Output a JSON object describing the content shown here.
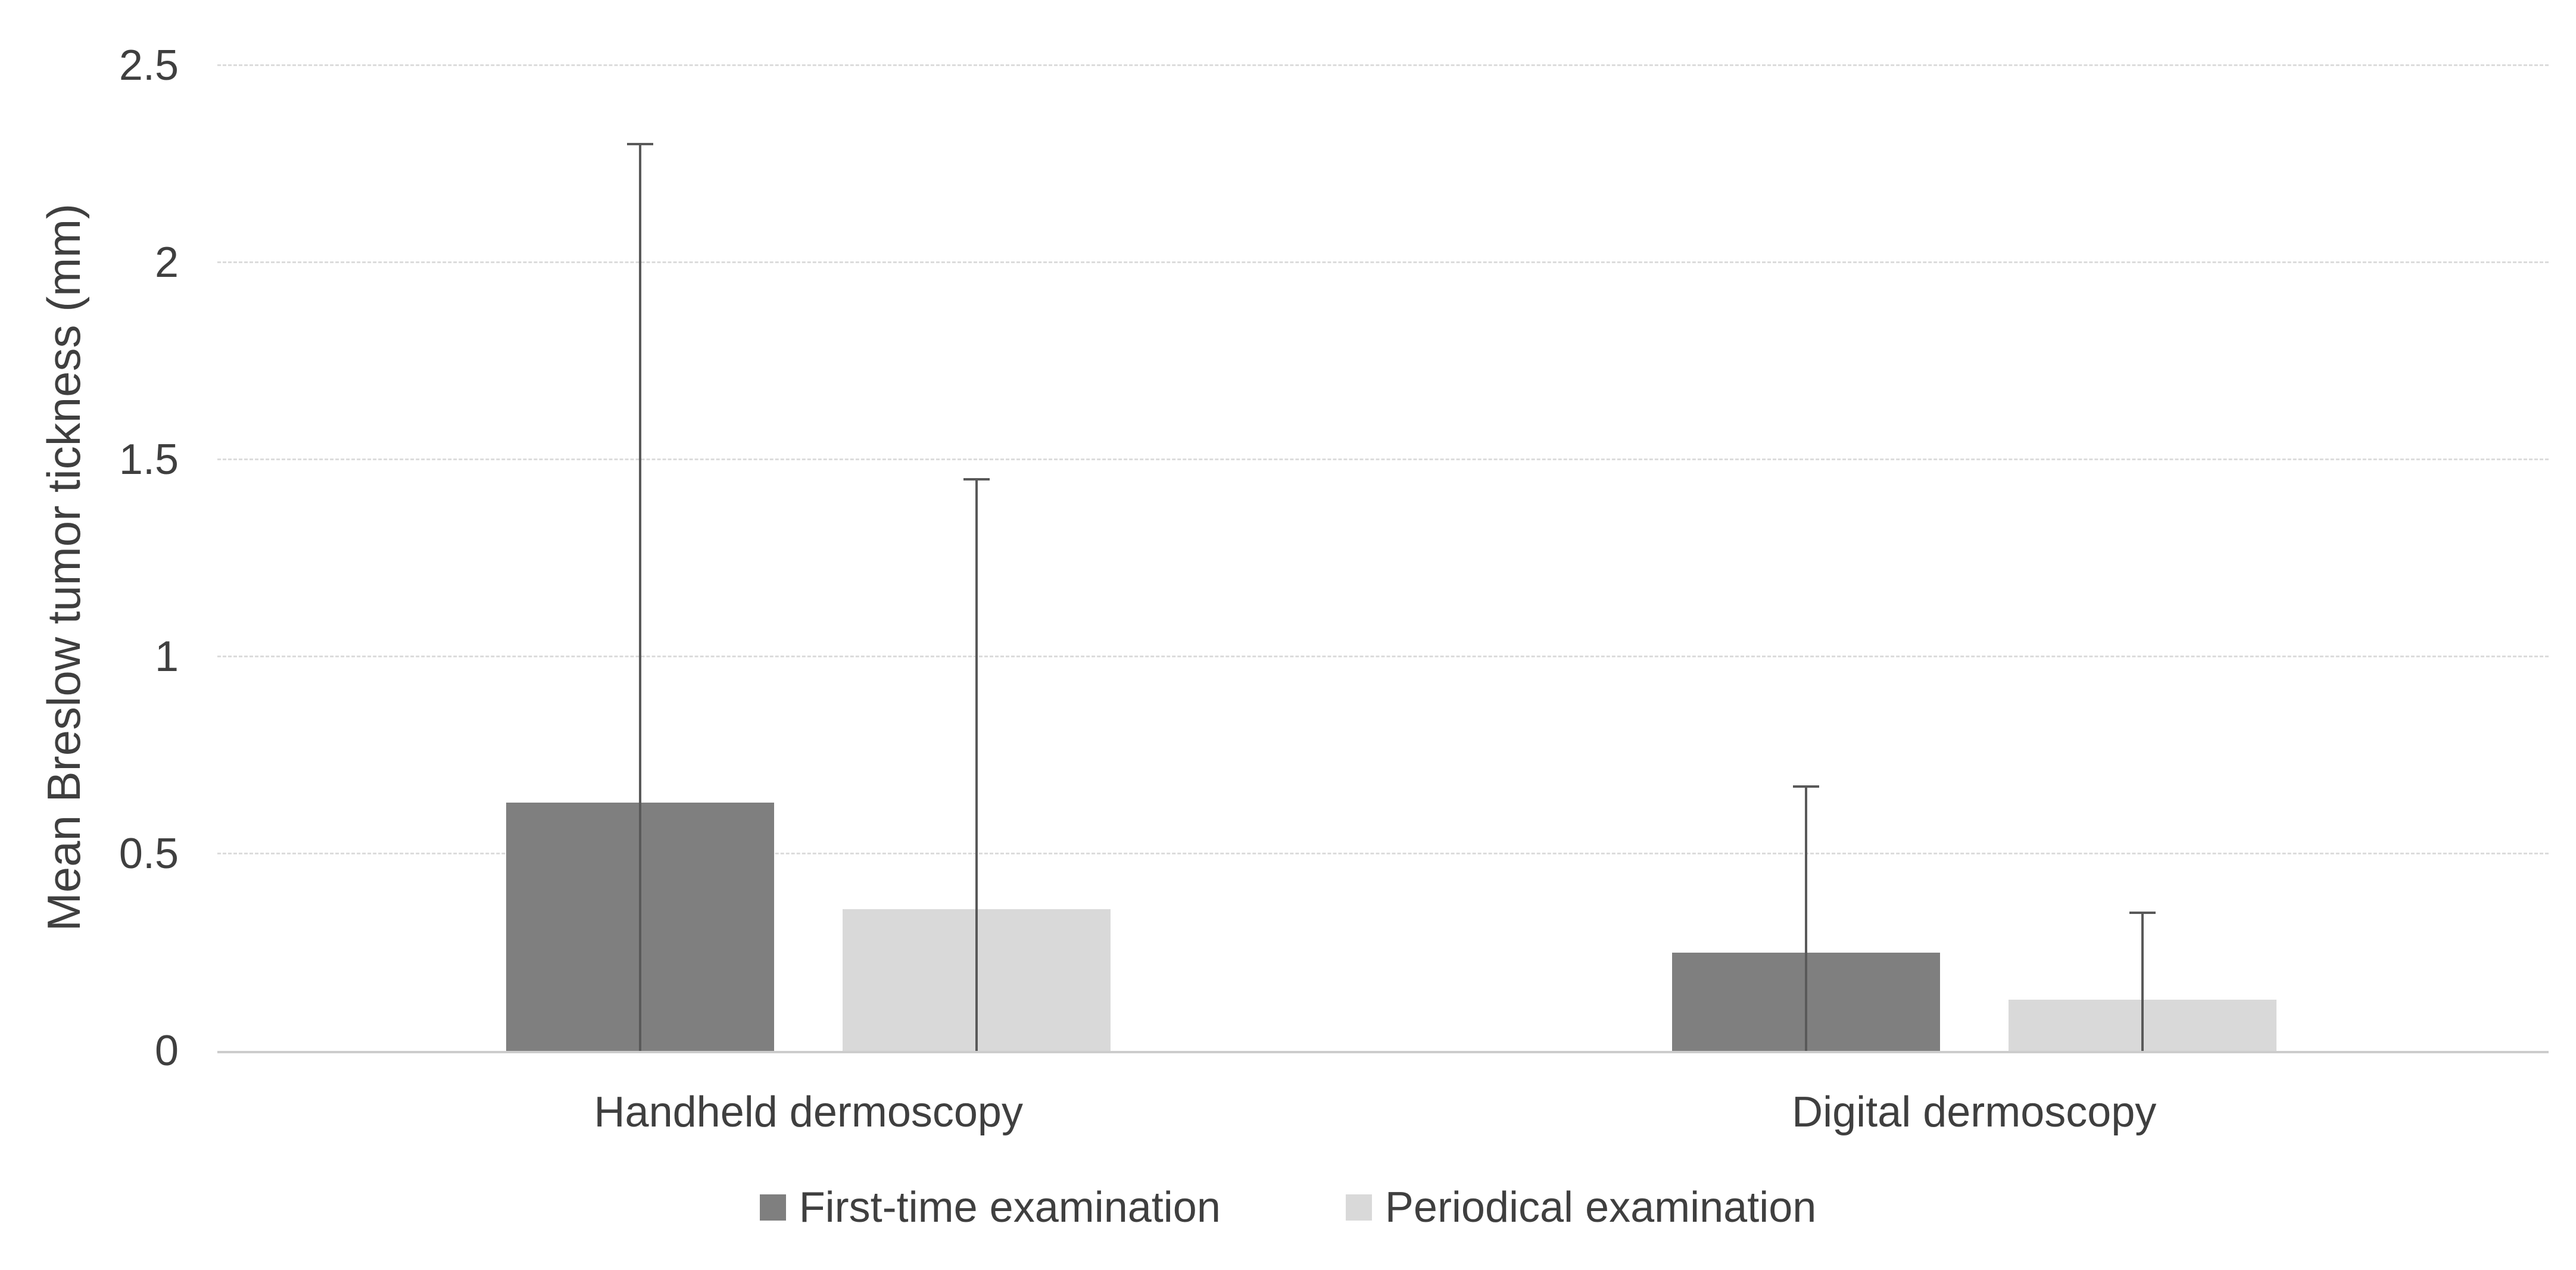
{
  "chart_data": {
    "type": "bar",
    "title": "",
    "xlabel": "",
    "ylabel": "Mean Breslow tumor tickness (mm)",
    "categories": [
      "Handheld dermoscopy",
      "Digital dermoscopy"
    ],
    "series": [
      {
        "name": "First-time examination",
        "color": "#7f7f7f",
        "values": [
          0.63,
          0.25
        ],
        "error_upper": [
          1.67,
          0.42
        ]
      },
      {
        "name": "Periodical examination",
        "color": "#d9d9d9",
        "values": [
          0.36,
          0.13
        ],
        "error_upper": [
          1.09,
          0.22
        ]
      }
    ],
    "error_bar_tops": {
      "First-time examination": [
        2.3,
        0.67
      ],
      "Periodical examination": [
        1.45,
        0.35
      ]
    },
    "ylim": [
      0,
      2.5
    ],
    "yticks": [
      {
        "label": "0",
        "value": 0
      },
      {
        "label": "0.5",
        "value": 0.5
      },
      {
        "label": "1",
        "value": 1
      },
      {
        "label": "1.5",
        "value": 1.5
      },
      {
        "label": "2",
        "value": 2
      },
      {
        "label": "2.5",
        "value": 2.5
      }
    ],
    "grid": "horizontal-dashed",
    "legend_position": "bottom",
    "colors": {
      "error_bar": "#595959",
      "gridline": "#dcdcdc",
      "axis_line": "#cccccc",
      "text": "#3f3f3f"
    }
  }
}
